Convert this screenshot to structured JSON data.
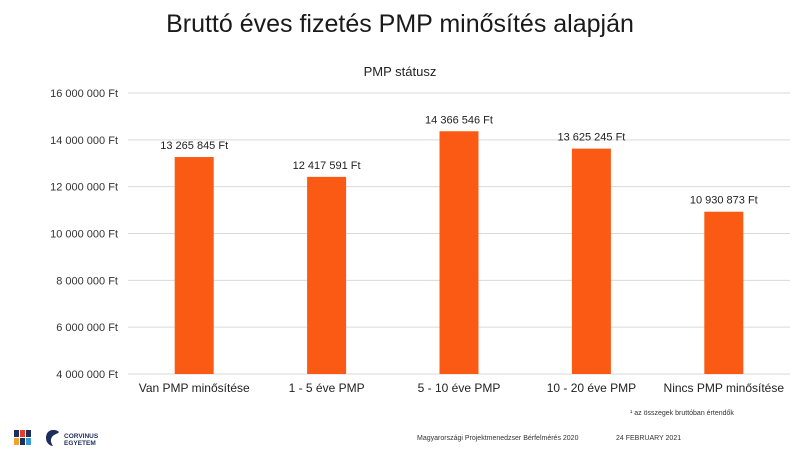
{
  "title": "Bruttó éves fizetés PMP minősítés alapján",
  "chart_data": {
    "type": "bar",
    "subtitle": "PMP státusz",
    "categories": [
      "Van PMP minősítése",
      "1 - 5 éve PMP",
      "5 - 10 éve PMP",
      "10 - 20 éve PMP",
      "Nincs PMP minősítése"
    ],
    "values": [
      13265845,
      12417591,
      14366546,
      13625245,
      10930873
    ],
    "data_labels": [
      "13 265 845 Ft",
      "12 417 591 Ft",
      "14 366 546 Ft",
      "13 625 245 Ft",
      "10 930 873 Ft"
    ],
    "y_ticks": [
      4000000,
      6000000,
      8000000,
      10000000,
      12000000,
      14000000,
      16000000
    ],
    "y_tick_labels": [
      "4 000 000 Ft",
      "6 000 000 Ft",
      "8 000 000 Ft",
      "10 000 000 Ft",
      "12 000 000 Ft",
      "14 000 000 Ft",
      "16 000 000 Ft"
    ],
    "ylim": [
      4000000,
      16000000
    ],
    "grid": true,
    "legend": "none",
    "bar_color": "#fa5a14"
  },
  "footnote": "¹ az összegek bruttóban értendők",
  "footer": {
    "survey": "Magyarországi Projektmenedzser Bérfelmérés 2020",
    "date": "24 FEBRUARY 2021"
  },
  "logos": {
    "pmi_icon": "pmi-logo-icon",
    "corvinus_line1": "CORVINUS",
    "corvinus_line2": "EGYETEM"
  }
}
